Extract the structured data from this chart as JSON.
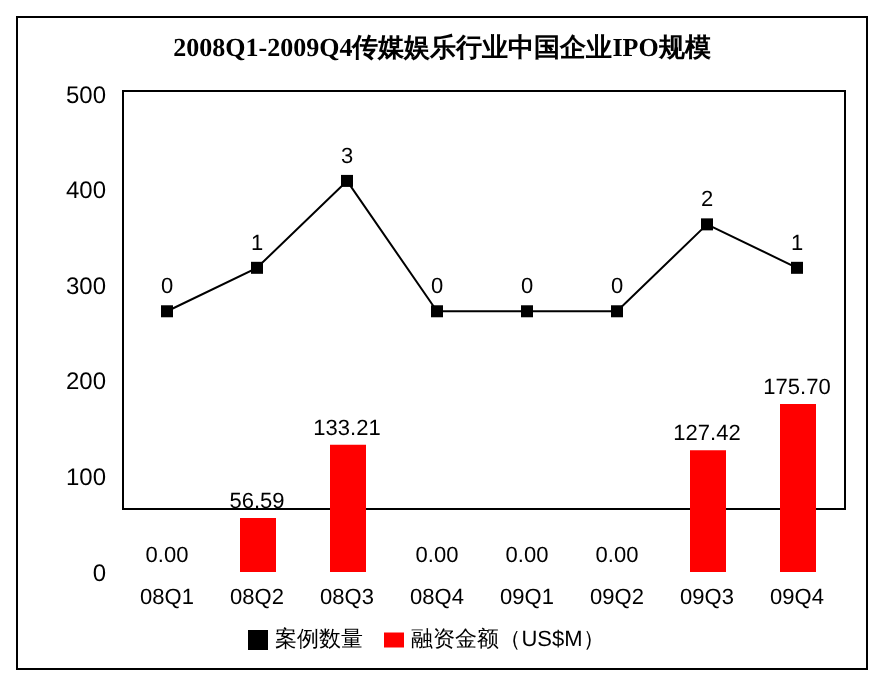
{
  "chart_data": {
    "type": "bar",
    "title": "2008Q1-2009Q4传媒娱乐行业中国企业IPO规模",
    "categories": [
      "08Q1",
      "08Q2",
      "08Q3",
      "08Q4",
      "09Q1",
      "09Q2",
      "09Q3",
      "09Q4"
    ],
    "series": [
      {
        "name": "融资金额（US$M）",
        "color": "#ff0000",
        "values": [
          0,
          56.59,
          133.21,
          0,
          0,
          0,
          127.42,
          175.7
        ],
        "value_labels": [
          "0.00",
          "56.59",
          "133.21",
          "0.00",
          "0.00",
          "0.00",
          "127.42",
          "175.70"
        ]
      },
      {
        "name": "案例数量",
        "type": "line",
        "axis": "y2",
        "color": "#000000",
        "values": [
          0,
          1,
          3,
          0,
          0,
          0,
          2,
          1
        ],
        "value_labels": [
          "0",
          "1",
          "3",
          "0",
          "0",
          "0",
          "2",
          "1"
        ]
      }
    ],
    "ylim": [
      0,
      500
    ],
    "yticks": [
      0,
      100,
      200,
      300,
      400,
      500
    ],
    "y2lim": [
      -6,
      5
    ],
    "grid": false,
    "legend": "bottom",
    "marker": "square",
    "line_style": "solid"
  }
}
